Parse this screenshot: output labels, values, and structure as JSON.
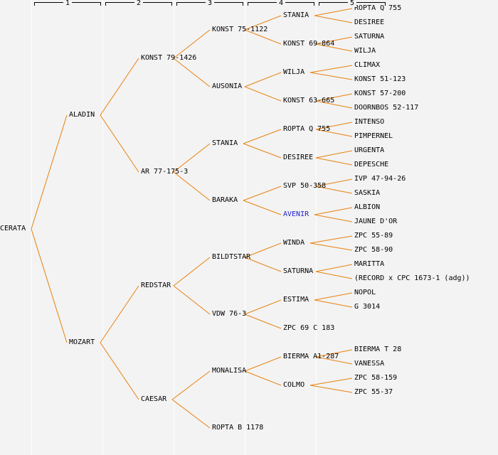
{
  "header": {
    "generation_labels": [
      "1",
      "2",
      "3",
      "4",
      "5"
    ]
  },
  "colors": {
    "background": "#f3f3f3",
    "separator": "#ffffff",
    "edge_line": "#e8820e",
    "text": "#000000",
    "link_text": "#2222cc"
  },
  "tree": {
    "name": "CERATA",
    "children": [
      {
        "name": "ALADIN",
        "children": [
          {
            "name": "KONST 79-1426",
            "children": [
              {
                "name": "KONST 75-1122",
                "children": [
                  {
                    "name": "STANIA",
                    "children": [
                      {
                        "name": "ROPTA Q 755"
                      },
                      {
                        "name": "DESIREE"
                      }
                    ]
                  },
                  {
                    "name": "KONST 69-864",
                    "children": [
                      {
                        "name": "SATURNA"
                      },
                      {
                        "name": "WILJA"
                      }
                    ]
                  }
                ]
              },
              {
                "name": "AUSONIA",
                "children": [
                  {
                    "name": "WILJA",
                    "children": [
                      {
                        "name": "CLIMAX"
                      },
                      {
                        "name": "KONST 51-123"
                      }
                    ]
                  },
                  {
                    "name": "KONST 63-665",
                    "children": [
                      {
                        "name": "KONST 57-200"
                      },
                      {
                        "name": "DOORNBOS 52-117"
                      }
                    ]
                  }
                ]
              }
            ]
          },
          {
            "name": "AR 77-175-3",
            "children": [
              {
                "name": "STANIA",
                "children": [
                  {
                    "name": "ROPTA Q 755",
                    "children": [
                      {
                        "name": "INTENSO"
                      },
                      {
                        "name": "PIMPERNEL"
                      }
                    ]
                  },
                  {
                    "name": "DESIREE",
                    "children": [
                      {
                        "name": "URGENTA"
                      },
                      {
                        "name": "DEPESCHE"
                      }
                    ]
                  }
                ]
              },
              {
                "name": "BARAKA",
                "children": [
                  {
                    "name": "SVP 50-358",
                    "children": [
                      {
                        "name": "IVP 47-94-26"
                      },
                      {
                        "name": "SASKIA"
                      }
                    ]
                  },
                  {
                    "name": "AVENIR",
                    "is_link": true,
                    "children": [
                      {
                        "name": "ALBION"
                      },
                      {
                        "name": "JAUNE D'OR"
                      }
                    ]
                  }
                ]
              }
            ]
          }
        ]
      },
      {
        "name": "MOZART",
        "children": [
          {
            "name": "REDSTAR",
            "children": [
              {
                "name": "BILDTSTAR",
                "children": [
                  {
                    "name": "WINDA",
                    "children": [
                      {
                        "name": "ZPC 55-89"
                      },
                      {
                        "name": "ZPC 58-90"
                      }
                    ]
                  },
                  {
                    "name": "SATURNA",
                    "children": [
                      {
                        "name": "MARITTA"
                      },
                      {
                        "name": "(RECORD x CPC 1673-1 (adg))"
                      }
                    ]
                  }
                ]
              },
              {
                "name": "VDW 76-3",
                "children": [
                  {
                    "name": "ESTIMA",
                    "children": [
                      {
                        "name": "NOPOL"
                      },
                      {
                        "name": "G 3014"
                      }
                    ]
                  },
                  {
                    "name": "ZPC 69 C 183"
                  }
                ]
              }
            ]
          },
          {
            "name": "CAESAR",
            "children": [
              {
                "name": "MONALISA",
                "children": [
                  {
                    "name": "BIERMA A1-287",
                    "children": [
                      {
                        "name": "BIERMA T 28"
                      },
                      {
                        "name": "VANESSA"
                      }
                    ]
                  },
                  {
                    "name": "COLMO",
                    "children": [
                      {
                        "name": "ZPC 58-159"
                      },
                      {
                        "name": "ZPC 55-37"
                      }
                    ]
                  }
                ]
              },
              {
                "name": "ROPTA B 1178"
              }
            ]
          }
        ]
      }
    ]
  }
}
